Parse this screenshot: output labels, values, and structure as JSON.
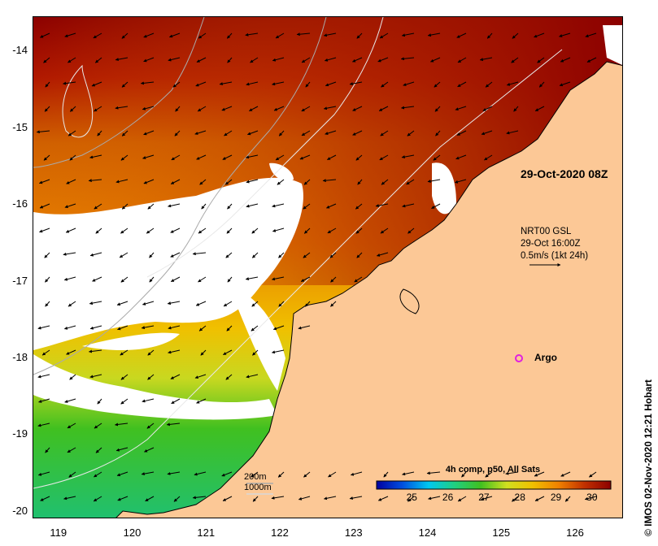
{
  "map": {
    "product": "4h comp, p50, All Sats",
    "date": "29-Oct-2020 08Z",
    "credit": "© IMOS 02-Nov-2020 12:21 Hobart",
    "lat_ticks": [
      "-14",
      "-15",
      "-16",
      "-17",
      "-18",
      "-19",
      "-20"
    ],
    "lon_ticks": [
      "119",
      "120",
      "121",
      "122",
      "123",
      "124",
      "125",
      "126"
    ],
    "lat_range": [
      -20.1,
      -13.55
    ],
    "lon_range": [
      118.65,
      126.65
    ],
    "colorbar": {
      "labels": [
        "25",
        "26",
        "27",
        "28",
        "29",
        "30"
      ],
      "range": [
        24,
        30.5
      ],
      "stops": [
        "#0000a0",
        "#0050e0",
        "#00c8f0",
        "#20d080",
        "#40c020",
        "#d0e020",
        "#f0c000",
        "#f08000",
        "#c03000",
        "#8c0000"
      ]
    },
    "vector_key": {
      "source": "NRT00 GSL",
      "time": "29-Oct 16:00Z",
      "scale": "0.5m/s (1kt 24h)"
    },
    "argo": {
      "label": "Argo",
      "lon": 125.3,
      "lat": -18.0,
      "color": "#e020e0"
    },
    "depth_legend": {
      "label_200": "200m",
      "label_1000": "1000m"
    },
    "colors": {
      "land": "#fcc896",
      "coast": "#000000",
      "isobath_200": "#aaaaaa",
      "isobath_1000": "#e8e8e8",
      "no_data": "#ffffff"
    }
  }
}
